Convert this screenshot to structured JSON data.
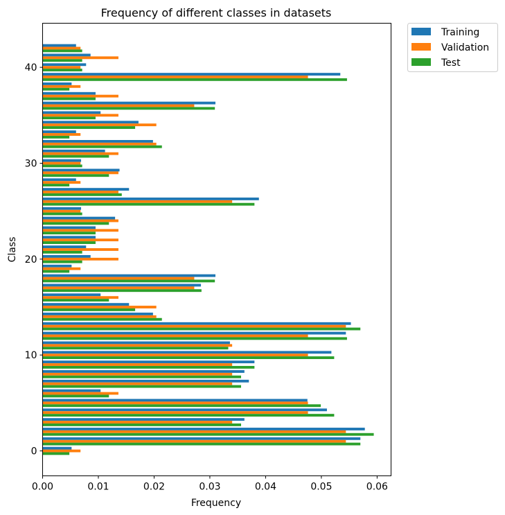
{
  "chart_data": {
    "type": "bar",
    "orientation": "horizontal",
    "title": "Frequency of different classes in datasets",
    "xlabel": "Frequency",
    "ylabel": "Class",
    "xlim": [
      0.0,
      0.0625
    ],
    "ylim": [
      -2.6,
      44.6
    ],
    "xticks": [
      0.0,
      0.01,
      0.02,
      0.03,
      0.04,
      0.05,
      0.06
    ],
    "xtick_labels": [
      "0.00",
      "0.01",
      "0.02",
      "0.03",
      "0.04",
      "0.05",
      "0.06"
    ],
    "yticks": [
      0,
      10,
      20,
      30,
      40
    ],
    "ytick_labels": [
      "0",
      "10",
      "20",
      "30",
      "40"
    ],
    "legend_position": "outside-top-right",
    "categories": [
      0,
      1,
      2,
      3,
      4,
      5,
      6,
      7,
      8,
      9,
      10,
      11,
      12,
      13,
      14,
      15,
      16,
      17,
      18,
      19,
      20,
      21,
      22,
      23,
      24,
      25,
      26,
      27,
      28,
      29,
      30,
      31,
      32,
      33,
      34,
      35,
      36,
      37,
      38,
      39,
      40,
      41,
      42
    ],
    "series": [
      {
        "name": "Training",
        "color": "#1f77b4",
        "values": [
          0.0052,
          0.057,
          0.0578,
          0.0362,
          0.051,
          0.0475,
          0.0104,
          0.037,
          0.0362,
          0.038,
          0.0518,
          0.0336,
          0.0544,
          0.0553,
          0.0198,
          0.0155,
          0.0104,
          0.0284,
          0.031,
          0.0052,
          0.0086,
          0.0078,
          0.0095,
          0.0095,
          0.013,
          0.0069,
          0.0388,
          0.0155,
          0.006,
          0.0138,
          0.0069,
          0.0112,
          0.0198,
          0.006,
          0.0172,
          0.0104,
          0.031,
          0.0095,
          0.0052,
          0.0534,
          0.0078,
          0.0086,
          0.006
        ]
      },
      {
        "name": "Validation",
        "color": "#ff7f0e",
        "values": [
          0.0068,
          0.0544,
          0.0544,
          0.034,
          0.0476,
          0.0476,
          0.0136,
          0.034,
          0.034,
          0.034,
          0.0476,
          0.034,
          0.0476,
          0.0544,
          0.0204,
          0.0204,
          0.0136,
          0.0272,
          0.0272,
          0.0068,
          0.0136,
          0.0136,
          0.0136,
          0.0136,
          0.0136,
          0.0068,
          0.034,
          0.0136,
          0.0068,
          0.0136,
          0.0068,
          0.0136,
          0.0204,
          0.0068,
          0.0204,
          0.0136,
          0.0272,
          0.0136,
          0.0068,
          0.0476,
          0.0068,
          0.0136,
          0.0068
        ]
      },
      {
        "name": "Test",
        "color": "#2ca02c",
        "values": [
          0.0048,
          0.057,
          0.0594,
          0.0356,
          0.0523,
          0.0499,
          0.0119,
          0.0356,
          0.0356,
          0.038,
          0.0523,
          0.0333,
          0.0546,
          0.057,
          0.0214,
          0.0166,
          0.0119,
          0.0285,
          0.0309,
          0.0048,
          0.0071,
          0.0071,
          0.0095,
          0.0095,
          0.0119,
          0.0071,
          0.038,
          0.0142,
          0.0048,
          0.0119,
          0.0071,
          0.0119,
          0.0214,
          0.0048,
          0.0166,
          0.0095,
          0.0309,
          0.0095,
          0.0048,
          0.0546,
          0.0071,
          0.0071,
          0.0071
        ]
      }
    ]
  }
}
